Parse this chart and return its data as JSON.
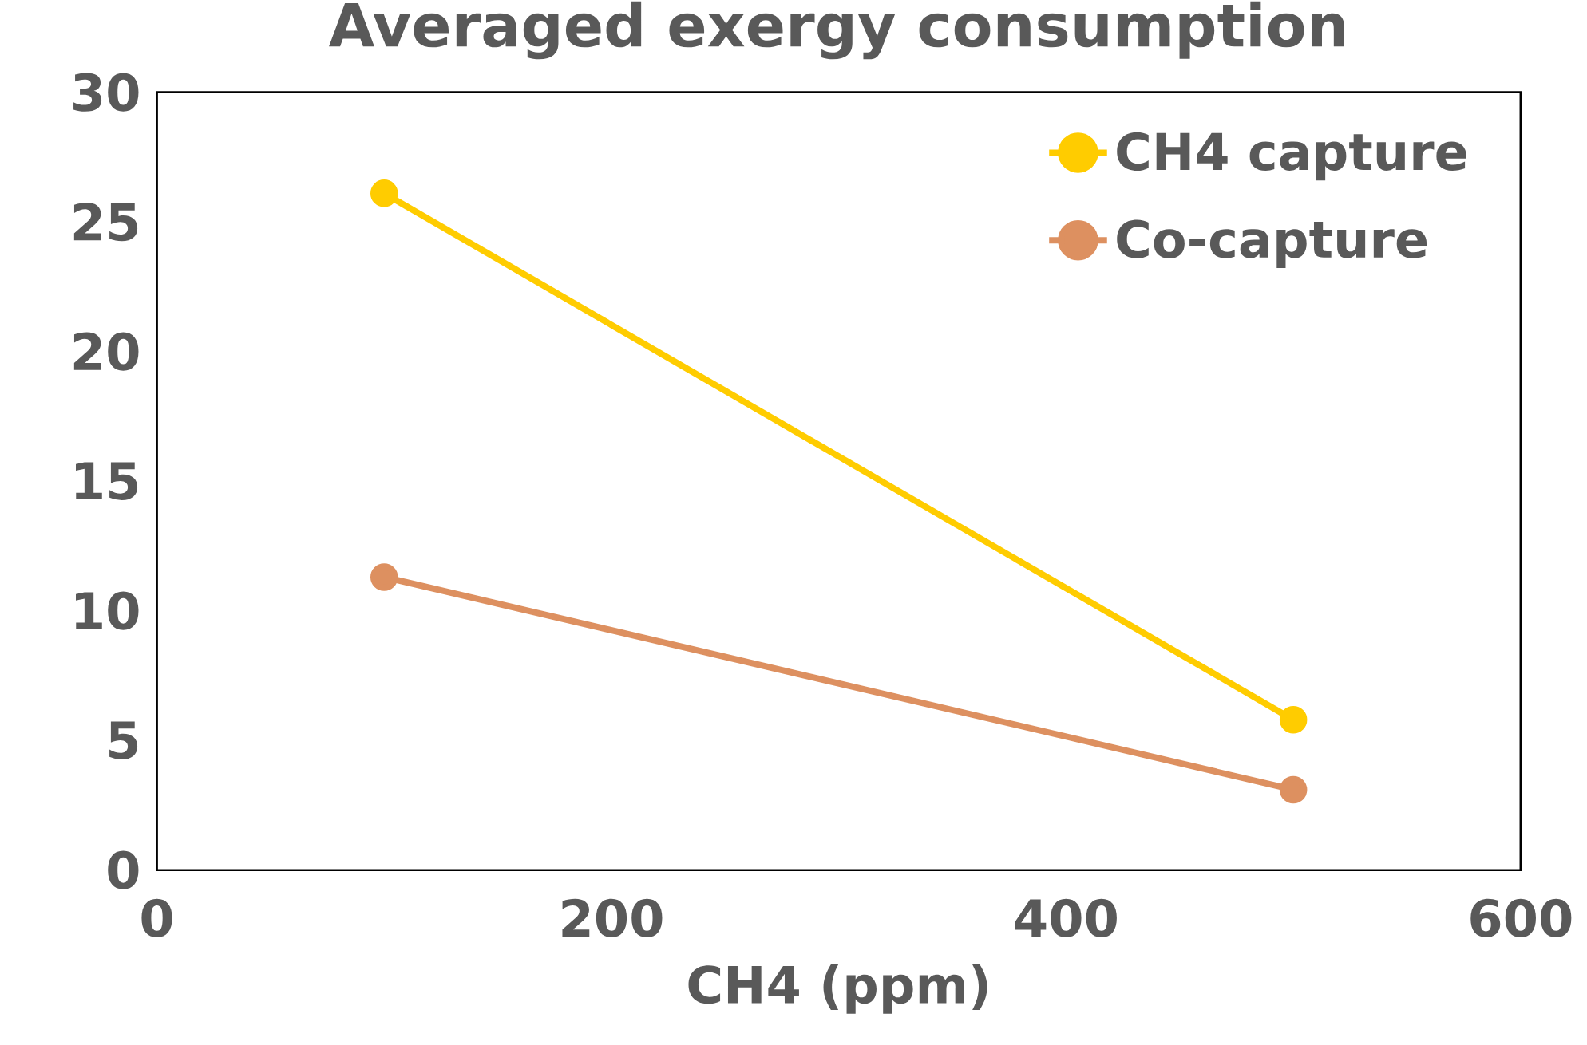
{
  "chart_data": {
    "type": "line",
    "title": "Averaged exergy consumption",
    "xlabel": "CH4 (ppm)",
    "xlim": [
      0,
      600
    ],
    "ylim": [
      0,
      30
    ],
    "xticks": [
      0,
      200,
      400,
      600
    ],
    "yticks": [
      0,
      5,
      10,
      15,
      20,
      25,
      30
    ],
    "marker": "circle",
    "line_style": "solid",
    "grid": false,
    "legend": "top right",
    "x": [
      100,
      500
    ],
    "series": [
      {
        "name": "CH4 capture",
        "color": "#ffcc00",
        "values": [
          26.1,
          5.8
        ]
      },
      {
        "name": "Co-capture",
        "color": "#dd9060",
        "values": [
          11.3,
          3.1
        ]
      }
    ]
  }
}
